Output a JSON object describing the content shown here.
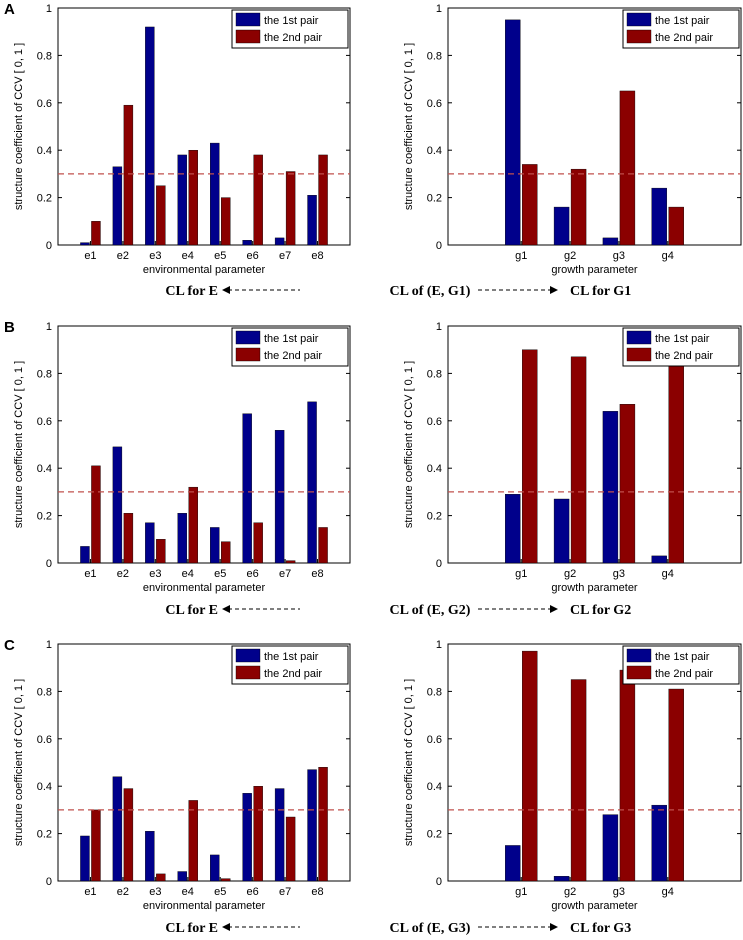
{
  "chart_data": [
    {
      "panel": "A",
      "side": "left",
      "type": "bar",
      "ylabel": "structure coefficient of CCV [ 0, 1 ]",
      "xlabel": "environmental parameter",
      "categories": [
        "e1",
        "e2",
        "e3",
        "e4",
        "e5",
        "e6",
        "e7",
        "e8"
      ],
      "series": [
        {
          "name": "the 1st pair",
          "color": "#00008b",
          "values": [
            0.01,
            0.33,
            0.92,
            0.38,
            0.43,
            0.02,
            0.03,
            0.21
          ]
        },
        {
          "name": "the 2nd pair",
          "color": "#8b0000",
          "values": [
            0.1,
            0.59,
            0.25,
            0.4,
            0.2,
            0.38,
            0.31,
            0.38
          ]
        }
      ],
      "threshold": 0.3,
      "ylim": [
        0,
        1
      ],
      "yticks": [
        "0",
        "0.2",
        "0.4",
        "0.6",
        "0.8",
        "1"
      ],
      "legend": "top-right"
    },
    {
      "panel": "A",
      "side": "right",
      "type": "bar",
      "ylabel": "structure coefficient of CCV [ 0, 1 ]",
      "xlabel": "growth parameter",
      "categories": [
        "g1",
        "g2",
        "g3",
        "g4"
      ],
      "series": [
        {
          "name": "the 1st pair",
          "color": "#00008b",
          "values": [
            0.95,
            0.16,
            0.03,
            0.24
          ]
        },
        {
          "name": "the 2nd pair",
          "color": "#8b0000",
          "values": [
            0.34,
            0.32,
            0.65,
            0.16
          ]
        }
      ],
      "threshold": 0.3,
      "ylim": [
        0,
        1
      ],
      "yticks": [
        "0",
        "0.2",
        "0.4",
        "0.6",
        "0.8",
        "1"
      ],
      "legend": "top-right"
    },
    {
      "panel": "B",
      "side": "left",
      "type": "bar",
      "ylabel": "structure coefficient of CCV [ 0, 1 ]",
      "xlabel": "environmental parameter",
      "categories": [
        "e1",
        "e2",
        "e3",
        "e4",
        "e5",
        "e6",
        "e7",
        "e8"
      ],
      "series": [
        {
          "name": "the 1st pair",
          "color": "#00008b",
          "values": [
            0.07,
            0.49,
            0.17,
            0.21,
            0.15,
            0.63,
            0.56,
            0.68
          ]
        },
        {
          "name": "the 2nd pair",
          "color": "#8b0000",
          "values": [
            0.41,
            0.21,
            0.1,
            0.32,
            0.09,
            0.17,
            0.01,
            0.15
          ]
        }
      ],
      "threshold": 0.3,
      "ylim": [
        0,
        1
      ],
      "yticks": [
        "0",
        "0.2",
        "0.4",
        "0.6",
        "0.8",
        "1"
      ],
      "legend": "top-right"
    },
    {
      "panel": "B",
      "side": "right",
      "type": "bar",
      "ylabel": "structure coefficient of CCV [ 0, 1 ]",
      "xlabel": "growth parameter",
      "categories": [
        "g1",
        "g2",
        "g3",
        "g4"
      ],
      "series": [
        {
          "name": "the 1st pair",
          "color": "#00008b",
          "values": [
            0.29,
            0.27,
            0.64,
            0.03
          ]
        },
        {
          "name": "the 2nd pair",
          "color": "#8b0000",
          "values": [
            0.9,
            0.87,
            0.67,
            0.83
          ]
        }
      ],
      "threshold": 0.3,
      "ylim": [
        0,
        1
      ],
      "yticks": [
        "0",
        "0.2",
        "0.4",
        "0.6",
        "0.8",
        "1"
      ],
      "legend": "top-right"
    },
    {
      "panel": "C",
      "side": "left",
      "type": "bar",
      "ylabel": "structure coefficient of CCV [ 0, 1 ]",
      "xlabel": "environmental parameter",
      "categories": [
        "e1",
        "e2",
        "e3",
        "e4",
        "e5",
        "e6",
        "e7",
        "e8"
      ],
      "series": [
        {
          "name": "the 1st pair",
          "color": "#00008b",
          "values": [
            0.19,
            0.44,
            0.21,
            0.04,
            0.11,
            0.37,
            0.39,
            0.47
          ]
        },
        {
          "name": "the 2nd pair",
          "color": "#8b0000",
          "values": [
            0.3,
            0.39,
            0.03,
            0.34,
            0.01,
            0.4,
            0.27,
            0.48
          ]
        }
      ],
      "threshold": 0.3,
      "ylim": [
        0,
        1
      ],
      "yticks": [
        "0",
        "0.2",
        "0.4",
        "0.6",
        "0.8",
        "1"
      ],
      "legend": "top-right"
    },
    {
      "panel": "C",
      "side": "right",
      "type": "bar",
      "ylabel": "structure coefficient of CCV [ 0, 1 ]",
      "xlabel": "growth parameter",
      "categories": [
        "g1",
        "g2",
        "g3",
        "g4"
      ],
      "series": [
        {
          "name": "the 1st pair",
          "color": "#00008b",
          "values": [
            0.15,
            0.02,
            0.28,
            0.32
          ]
        },
        {
          "name": "the 2nd pair",
          "color": "#8b0000",
          "values": [
            0.97,
            0.85,
            0.89,
            0.81
          ]
        }
      ],
      "threshold": 0.3,
      "ylim": [
        0,
        1
      ],
      "yticks": [
        "0",
        "0.2",
        "0.4",
        "0.6",
        "0.8",
        "1"
      ],
      "legend": "top-right"
    }
  ],
  "captions": [
    {
      "left": "CL for E",
      "center": "CL of (E, G1)",
      "right": "CL for G1"
    },
    {
      "left": "CL for E",
      "center": "CL of (E, G2)",
      "right": "CL for G2"
    },
    {
      "left": "CL for E",
      "center": "CL of (E, G3)",
      "right": "CL for G3"
    }
  ],
  "panel_letters": [
    "A",
    "B",
    "C"
  ]
}
